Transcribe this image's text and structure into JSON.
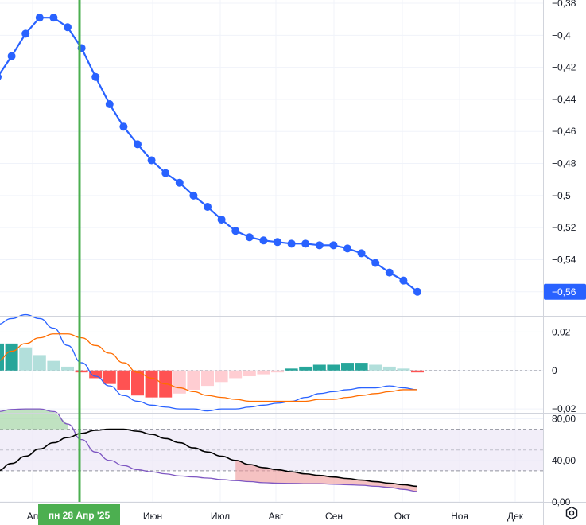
{
  "chart_data": [
    {
      "type": "line",
      "pane": "main",
      "series": [
        {
          "color": "#2962ff",
          "values": [
            -0.426,
            -0.413,
            -0.399,
            -0.389,
            -0.389,
            -0.395,
            -0.408,
            -0.426,
            -0.443,
            -0.457,
            -0.468,
            -0.478,
            -0.486,
            -0.492,
            -0.5,
            -0.507,
            -0.515,
            -0.522,
            -0.526,
            -0.528,
            -0.529,
            -0.53,
            -0.53,
            -0.531,
            -0.531,
            -0.533,
            -0.536,
            -0.542,
            -0.548,
            -0.553,
            -0.56
          ]
        }
      ],
      "ylim": [
        -0.575,
        -0.378
      ],
      "yticks": [
        "−0,38",
        "−0,4",
        "−0,42",
        "−0,44",
        "−0,46",
        "−0,48",
        "−0,5",
        "−0,52",
        "−0,54",
        "−0,56"
      ],
      "last_value_label": "−0,56",
      "last_value_color": "#2962ff"
    },
    {
      "type": "bar",
      "pane": "macd",
      "histogram": [
        0.014,
        0.014,
        0.012,
        0.008,
        0.005,
        0.002,
        -0.001,
        -0.004,
        -0.007,
        -0.01,
        -0.013,
        -0.014,
        -0.014,
        -0.012,
        -0.01,
        -0.008,
        -0.006,
        -0.004,
        -0.003,
        -0.002,
        -0.001,
        0.001,
        0.002,
        0.003,
        0.003,
        0.004,
        0.004,
        0.003,
        0.002,
        0.001,
        -0.001
      ],
      "histogram_colors": {
        "pos_up": "#26a69a",
        "pos_down": "#b2dfdb",
        "neg_down": "#ff5252",
        "neg_up": "#ffcdd2"
      },
      "series": [
        {
          "color": "#2962ff",
          "values": [
            0.024,
            0.027,
            0.029,
            0.027,
            0.022,
            0.013,
            0.004,
            -0.003,
            -0.008,
            -0.013,
            -0.016,
            -0.018,
            -0.019,
            -0.02,
            -0.02,
            -0.021,
            -0.02,
            -0.02,
            -0.019,
            -0.018,
            -0.017,
            -0.016,
            -0.014,
            -0.012,
            -0.011,
            -0.01,
            -0.009,
            -0.009,
            -0.008,
            -0.009,
            -0.01
          ]
        },
        {
          "color": "#ff6d00",
          "values": [
            0.005,
            0.01,
            0.014,
            0.017,
            0.019,
            0.019,
            0.017,
            0.013,
            0.009,
            0.004,
            -0.001,
            -0.004,
            -0.007,
            -0.009,
            -0.011,
            -0.013,
            -0.014,
            -0.015,
            -0.016,
            -0.016,
            -0.016,
            -0.016,
            -0.016,
            -0.015,
            -0.015,
            -0.014,
            -0.013,
            -0.012,
            -0.011,
            -0.01,
            -0.01
          ]
        }
      ],
      "ylim": [
        -0.022,
        0.028
      ],
      "yticks": [
        "0,02",
        "0",
        "−0,02"
      ]
    },
    {
      "type": "line",
      "pane": "rsi",
      "band": [
        30,
        70
      ],
      "series": [
        {
          "color": "#7e57c2",
          "values": [
            87,
            89,
            89.5,
            89.5,
            87,
            75,
            60,
            48,
            40,
            35,
            31,
            29,
            27,
            25,
            24,
            23,
            21.5,
            20.5,
            19.5,
            18.5,
            18,
            17.8,
            17.5,
            17.5,
            17,
            16.5,
            16,
            15,
            14,
            12,
            10
          ]
        },
        {
          "color": "#000000",
          "values": [
            30,
            37,
            44,
            51,
            57,
            62,
            66,
            69,
            70,
            70,
            68,
            65,
            61,
            57,
            52,
            48,
            44,
            40,
            36,
            33,
            31,
            29,
            27,
            25.5,
            24,
            22.5,
            21,
            19.5,
            18,
            16.5,
            15
          ]
        }
      ],
      "ylim": [
        0,
        85
      ],
      "yticks": [
        "80,00",
        "40,00",
        "0,00"
      ]
    }
  ],
  "x_axis": {
    "labels": [
      "Ап",
      "Июн",
      "Июл",
      "Авг",
      "Сен",
      "Окт",
      "Ноя",
      "Дек"
    ],
    "crosshair_label": "пн 28 Апр '25",
    "crosshair_color": "#4caf50"
  },
  "icons": {
    "settings": "settings-hexagon-icon"
  }
}
